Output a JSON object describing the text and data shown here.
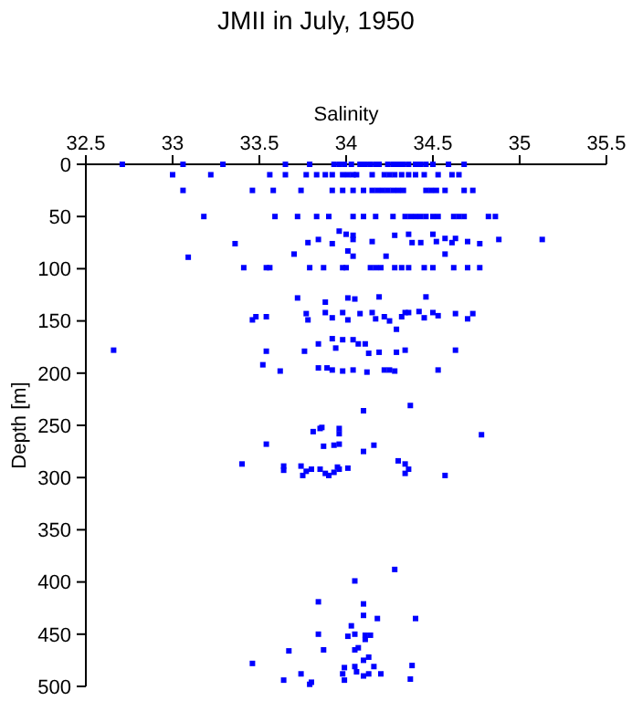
{
  "chart_data": {
    "type": "scatter",
    "title": "JMII in July, 1950",
    "xlabel": "Salinity",
    "ylabel": "Depth [m]",
    "xlim": [
      32.5,
      35.5
    ],
    "xticks": [
      32.5,
      33,
      33.5,
      34,
      34.5,
      35,
      35.5
    ],
    "ylim": [
      500,
      0
    ],
    "yticks": [
      0,
      50,
      100,
      150,
      200,
      250,
      300,
      350,
      400,
      450,
      500
    ],
    "marker": "square",
    "series": [
      {
        "color": "#0000ff",
        "x": [
          32.71,
          33.06,
          33.29,
          33.65,
          33.79,
          33.93,
          33.96,
          33.99,
          34.03,
          34.08,
          34.11,
          34.14,
          34.17,
          34.19,
          34.24,
          34.27,
          34.3,
          34.33,
          34.36,
          34.4,
          34.43,
          34.46,
          34.5,
          34.59,
          34.68,
          33.0,
          33.22,
          33.56,
          33.65,
          33.77,
          33.83,
          33.88,
          33.92,
          33.98,
          34.01,
          34.04,
          34.06,
          34.15,
          34.22,
          34.25,
          34.28,
          34.32,
          34.36,
          34.4,
          34.45,
          34.53,
          34.61,
          34.65,
          33.06,
          33.46,
          33.58,
          33.74,
          33.92,
          33.98,
          34.04,
          34.1,
          34.15,
          34.18,
          34.21,
          34.24,
          34.27,
          34.3,
          34.33,
          34.46,
          34.49,
          34.52,
          34.57,
          34.68,
          34.73,
          33.18,
          33.59,
          33.72,
          33.83,
          33.9,
          34.04,
          34.1,
          34.17,
          34.27,
          34.34,
          34.37,
          34.4,
          34.43,
          34.46,
          34.5,
          34.53,
          34.62,
          34.65,
          34.68,
          34.82,
          34.86,
          33.96,
          34.0,
          34.04,
          33.36,
          33.78,
          33.84,
          33.92,
          34.04,
          34.15,
          34.28,
          34.36,
          34.38,
          34.43,
          34.5,
          34.52,
          34.57,
          34.61,
          34.63,
          34.7,
          34.77,
          34.88,
          35.13,
          33.09,
          33.7,
          34.01,
          34.04,
          34.23,
          34.57,
          33.41,
          33.54,
          33.56,
          33.79,
          33.87,
          33.98,
          34.0,
          34.14,
          34.17,
          34.2,
          34.28,
          34.32,
          34.36,
          34.45,
          34.5,
          34.62,
          34.7,
          34.77,
          33.72,
          33.88,
          34.01,
          34.05,
          34.19,
          34.46,
          33.46,
          33.48,
          33.54,
          33.77,
          33.78,
          33.88,
          33.92,
          33.98,
          34.01,
          34.08,
          34.15,
          34.17,
          34.22,
          34.25,
          34.32,
          34.34,
          34.36,
          34.42,
          34.45,
          34.5,
          34.53,
          34.63,
          34.7,
          34.73,
          34.29,
          33.92,
          33.98,
          34.04,
          34.07,
          34.11,
          33.84,
          32.66,
          33.54,
          33.76,
          34.13,
          34.19,
          34.29,
          34.34,
          34.63,
          33.94,
          33.52,
          33.62,
          33.84,
          33.89,
          33.92,
          33.98,
          34.04,
          34.12,
          34.22,
          34.25,
          34.28,
          34.53,
          34.1,
          34.37,
          33.81,
          33.85,
          33.86,
          33.96,
          33.96,
          33.54,
          33.87,
          33.93,
          33.96,
          34.16,
          34.78,
          34.1,
          33.4,
          33.64,
          33.64,
          33.74,
          33.77,
          33.8,
          33.85,
          33.75,
          33.88,
          33.9,
          33.93,
          33.95,
          33.96,
          34.01,
          34.3,
          34.34,
          34.34,
          34.36,
          34.57,
          34.28,
          34.05,
          33.84,
          34.1,
          34.1,
          34.18,
          34.4,
          34.03,
          33.84,
          34.05,
          34.01,
          34.11,
          34.14,
          34.11,
          33.67,
          33.87,
          34.05,
          34.07,
          34.13,
          34.1,
          33.46,
          34.38,
          34.05,
          34.16,
          33.99,
          33.74,
          33.98,
          34.06,
          34.13,
          34.2,
          33.64,
          33.99,
          34.1,
          34.37,
          33.79,
          33.8
        ],
        "values": [
          0,
          0,
          0,
          0,
          0,
          0,
          0,
          0,
          0,
          0,
          0,
          0,
          0,
          0,
          0,
          0,
          0,
          0,
          0,
          0,
          0,
          0,
          0,
          0,
          0,
          10,
          10,
          10,
          10,
          10,
          10,
          10,
          10,
          10,
          10,
          10,
          10,
          10,
          10,
          10,
          10,
          10,
          10,
          10,
          10,
          10,
          10,
          10,
          25,
          25,
          25,
          25,
          25,
          25,
          25,
          25,
          25,
          25,
          25,
          25,
          25,
          25,
          25,
          25,
          25,
          25,
          25,
          25,
          25,
          50,
          50,
          50,
          50,
          50,
          50,
          50,
          50,
          50,
          50,
          50,
          50,
          50,
          50,
          50,
          50,
          50,
          50,
          50,
          50,
          50,
          64,
          67,
          68,
          76,
          75,
          72,
          76,
          72,
          74,
          68,
          67,
          75,
          75,
          67,
          74,
          71,
          75,
          71,
          74,
          76,
          72,
          72,
          89,
          86,
          83,
          88,
          88,
          86,
          99,
          99,
          99,
          99,
          99,
          99,
          99,
          99,
          99,
          99,
          99,
          99,
          99,
          99,
          99,
          99,
          99,
          99,
          128,
          132,
          128,
          129,
          127,
          127,
          149,
          146,
          146,
          143,
          149,
          142,
          147,
          142,
          149,
          143,
          142,
          148,
          146,
          150,
          146,
          142,
          142,
          141,
          147,
          142,
          145,
          143,
          148,
          143,
          158,
          167,
          168,
          168,
          172,
          172,
          172,
          178,
          179,
          179,
          181,
          180,
          180,
          178,
          178,
          176,
          192,
          198,
          195,
          195,
          197,
          198,
          197,
          199,
          197,
          197,
          198,
          197,
          236,
          231,
          256,
          253,
          252,
          253,
          258,
          268,
          270,
          269,
          268,
          269,
          259,
          275,
          287,
          289,
          293,
          289,
          294,
          292,
          292,
          298,
          296,
          298,
          295,
          290,
          292,
          291,
          284,
          287,
          296,
          292,
          298,
          388,
          399,
          419,
          421,
          432,
          435,
          435,
          442,
          450,
          450,
          452,
          451,
          451,
          455,
          466,
          465,
          465,
          463,
          472,
          475,
          478,
          480,
          481,
          481,
          482,
          488,
          488,
          486,
          488,
          488,
          494,
          494,
          490,
          493,
          498,
          496
        ]
      }
    ]
  }
}
